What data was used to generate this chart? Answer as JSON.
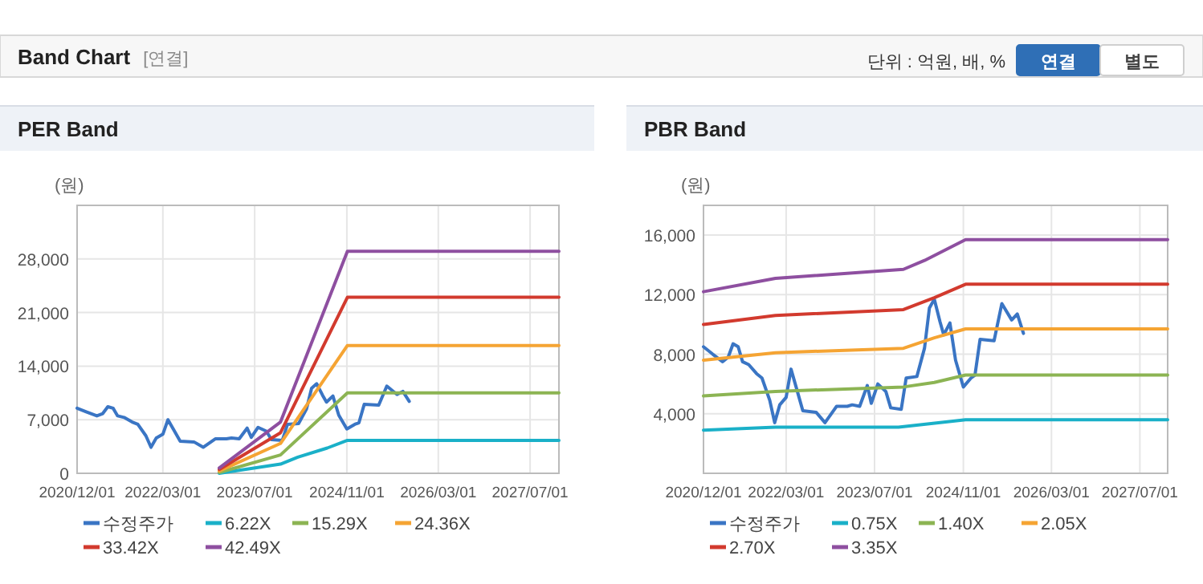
{
  "chart_data": [
    {
      "type": "other",
      "title": "Band Chart",
      "subtitle": "[연결]",
      "annotations": [
        "단위 : 억원, 배, %",
        "연결",
        "별도"
      ]
    },
    {
      "type": "line",
      "title": "PER Band",
      "ylabel": "(원)",
      "xlim": [
        "2020-12-01",
        "2027-12-01"
      ],
      "xticks": [
        {
          "value": "2020-12-01",
          "label": "2020/12/01"
        },
        {
          "value": "2022-03-01",
          "label": "2022/03/01"
        },
        {
          "value": "2023-07-01",
          "label": "2023/07/01"
        },
        {
          "value": "2024-11-01",
          "label": "2024/11/01"
        },
        {
          "value": "2026-03-01",
          "label": "2026/03/01"
        },
        {
          "value": "2027-07-01",
          "label": "2027/07/01"
        }
      ],
      "ylim": [
        0,
        35000
      ],
      "yticks": [
        0,
        {
          "value": 7000,
          "label": "7,000"
        },
        {
          "value": 14000,
          "label": "14,000"
        },
        {
          "value": 21000,
          "label": "21,000"
        },
        {
          "value": 28000,
          "label": "28,000"
        }
      ],
      "grid": true,
      "legend": "bottom",
      "series": [
        {
          "name": "수정주가",
          "color": "#3a75c4",
          "x": [
            "2020-12-01",
            "2021-01-21",
            "2021-03-16",
            "2021-04-16",
            "2021-05-13",
            "2021-06-10",
            "2021-07-04",
            "2021-08-07",
            "2021-09-19",
            "2021-10-19",
            "2021-12-01",
            "2021-12-28",
            "2022-01-25",
            "2022-03-01",
            "2022-03-28",
            "2022-04-25",
            "2022-06-01",
            "2022-08-13",
            "2022-10-01",
            "2022-12-04",
            "2023-02-01",
            "2023-02-28",
            "2023-04-10",
            "2023-05-22",
            "2023-06-13",
            "2023-07-19",
            "2023-09-01",
            "2023-09-28",
            "2023-11-25",
            "2023-12-22",
            "2024-02-19",
            "2024-04-01",
            "2024-04-28",
            "2024-05-25",
            "2024-06-25",
            "2024-07-16",
            "2024-08-19",
            "2024-09-19",
            "2024-11-01",
            "2024-12-13",
            "2025-01-04",
            "2025-02-01",
            "2025-04-19",
            "2025-06-01",
            "2025-07-25",
            "2025-08-25",
            "2025-09-28"
          ],
          "values": [
            8500,
            8000,
            7500,
            7800,
            8700,
            8500,
            7500,
            7300,
            6700,
            6400,
            4900,
            3400,
            4600,
            5100,
            7000,
            5800,
            4200,
            4100,
            3400,
            4500,
            4500,
            4600,
            4500,
            5900,
            4700,
            6000,
            5500,
            4400,
            4300,
            6400,
            6500,
            8400,
            11100,
            11700,
            10200,
            9300,
            10100,
            7600,
            5800,
            6400,
            6600,
            9000,
            8900,
            11400,
            10300,
            10700,
            9400
          ]
        },
        {
          "name": "6.22X",
          "color": "#1ab0c8",
          "x": [
            "2022-12-25",
            "2023-11-15",
            "2024-02-15",
            "2024-07-20",
            "2024-11-04",
            "2027-12-01"
          ],
          "values": [
            0,
            1200,
            2100,
            3300,
            4300,
            4300
          ]
        },
        {
          "name": "15.29X",
          "color": "#8cb453",
          "x": [
            "2022-12-25",
            "2023-11-15",
            "2024-11-04",
            "2027-12-01"
          ],
          "values": [
            100,
            2400,
            10500,
            10500
          ]
        },
        {
          "name": "24.36X",
          "color": "#f5a433",
          "x": [
            "2022-12-25",
            "2023-11-15",
            "2024-11-04",
            "2027-12-01"
          ],
          "values": [
            300,
            3900,
            16700,
            16700
          ]
        },
        {
          "name": "33.42X",
          "color": "#d23a2e",
          "x": [
            "2022-12-25",
            "2023-11-15",
            "2024-11-04",
            "2027-12-01"
          ],
          "values": [
            500,
            5300,
            23000,
            23000
          ]
        },
        {
          "name": "42.49X",
          "color": "#8e4fa0",
          "x": [
            "2022-12-25",
            "2023-11-15",
            "2024-11-04",
            "2027-12-01"
          ],
          "values": [
            700,
            6700,
            29000,
            29000
          ]
        }
      ]
    },
    {
      "type": "line",
      "title": "PBR Band",
      "ylabel": "(원)",
      "xlim": [
        "2020-12-01",
        "2027-12-01"
      ],
      "xticks": [
        {
          "value": "2020-12-01",
          "label": "2020/12/01"
        },
        {
          "value": "2022-03-01",
          "label": "2022/03/01"
        },
        {
          "value": "2023-07-01",
          "label": "2023/07/01"
        },
        {
          "value": "2024-11-01",
          "label": "2024/11/01"
        },
        {
          "value": "2026-03-01",
          "label": "2026/03/01"
        },
        {
          "value": "2027-07-01",
          "label": "2027/07/01"
        }
      ],
      "ylim": [
        0,
        18000
      ],
      "yticks": [
        {
          "value": 4000,
          "label": "4,000"
        },
        {
          "value": 8000,
          "label": "8,000"
        },
        {
          "value": 12000,
          "label": "12,000"
        },
        {
          "value": 16000,
          "label": "16,000"
        }
      ],
      "grid": true,
      "legend": "bottom",
      "series": [
        {
          "name": "수정주가",
          "color": "#3a75c4",
          "x": [
            "2020-12-01",
            "2021-01-21",
            "2021-03-16",
            "2021-04-16",
            "2021-05-13",
            "2021-06-10",
            "2021-07-04",
            "2021-08-07",
            "2021-09-19",
            "2021-10-19",
            "2021-12-01",
            "2021-12-28",
            "2022-01-25",
            "2022-03-01",
            "2022-03-28",
            "2022-04-25",
            "2022-06-01",
            "2022-08-13",
            "2022-10-01",
            "2022-12-04",
            "2023-02-01",
            "2023-02-28",
            "2023-04-10",
            "2023-05-22",
            "2023-06-13",
            "2023-07-19",
            "2023-09-01",
            "2023-09-28",
            "2023-11-25",
            "2023-12-22",
            "2024-02-19",
            "2024-04-01",
            "2024-04-28",
            "2024-05-25",
            "2024-06-25",
            "2024-07-16",
            "2024-08-19",
            "2024-09-19",
            "2024-11-01",
            "2024-12-13",
            "2025-01-04",
            "2025-02-01",
            "2025-04-19",
            "2025-06-01",
            "2025-07-25",
            "2025-08-25",
            "2025-09-28"
          ],
          "values": [
            8500,
            8000,
            7500,
            7800,
            8700,
            8500,
            7500,
            7300,
            6700,
            6400,
            4900,
            3400,
            4600,
            5100,
            7000,
            5800,
            4200,
            4100,
            3400,
            4500,
            4500,
            4600,
            4500,
            5900,
            4700,
            6000,
            5500,
            4400,
            4300,
            6400,
            6500,
            8400,
            11100,
            11700,
            10200,
            9300,
            10100,
            7600,
            5800,
            6400,
            6600,
            9000,
            8900,
            11400,
            10300,
            10700,
            9400
          ]
        },
        {
          "name": "0.75X",
          "color": "#1ab0c8",
          "x": [
            "2020-12-01",
            "2022-01-01",
            "2023-11-10",
            "2024-11-13",
            "2027-12-01"
          ],
          "values": [
            2900,
            3100,
            3100,
            3600,
            3600
          ]
        },
        {
          "name": "1.40X",
          "color": "#8cb453",
          "x": [
            "2020-12-01",
            "2022-01-01",
            "2023-12-07",
            "2024-05-25",
            "2024-11-13",
            "2027-12-01"
          ],
          "values": [
            5200,
            5500,
            5800,
            6100,
            6600,
            6600
          ]
        },
        {
          "name": "2.05X",
          "color": "#f5a433",
          "x": [
            "2020-12-01",
            "2022-01-01",
            "2023-12-07",
            "2024-05-25",
            "2024-11-13",
            "2027-12-01"
          ],
          "values": [
            7600,
            8100,
            8400,
            9100,
            9700,
            9700
          ]
        },
        {
          "name": "2.70X",
          "color": "#d23a2e",
          "x": [
            "2020-12-01",
            "2022-01-01",
            "2023-12-07",
            "2024-05-25",
            "2024-11-13",
            "2027-12-01"
          ],
          "values": [
            10000,
            10600,
            11000,
            11800,
            12700,
            12700
          ]
        },
        {
          "name": "3.35X",
          "color": "#8e4fa0",
          "x": [
            "2020-12-01",
            "2022-01-01",
            "2023-12-07",
            "2024-04-01",
            "2024-11-13",
            "2027-12-01"
          ],
          "values": [
            12200,
            13100,
            13700,
            14300,
            15700,
            15700
          ]
        }
      ]
    }
  ]
}
